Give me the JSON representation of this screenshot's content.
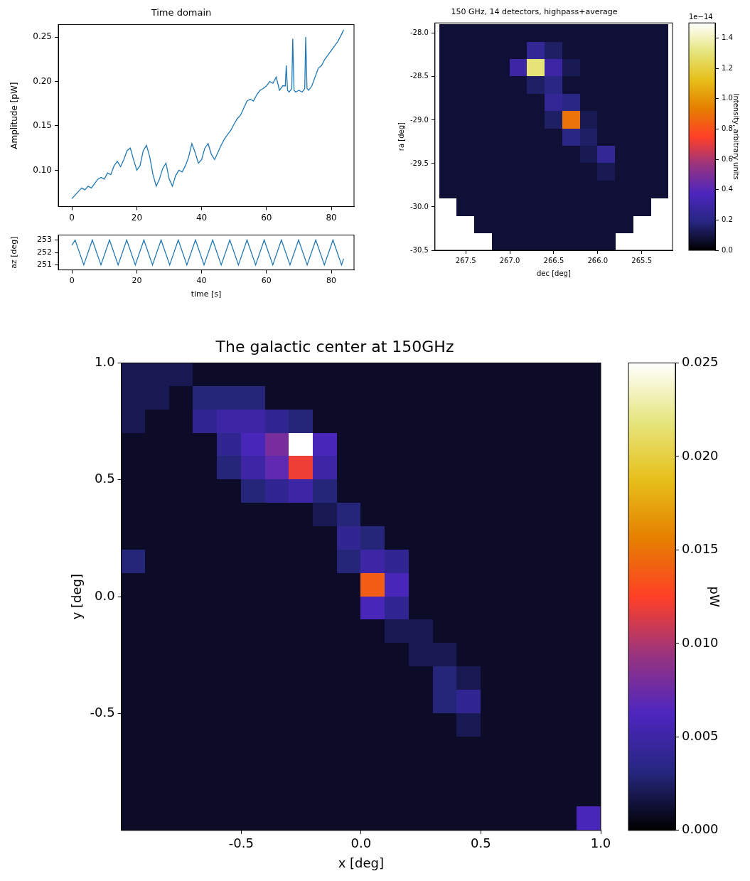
{
  "chart_data": [
    {
      "type": "line",
      "title": "Time domain",
      "ylabel": "Amplitude [pW]",
      "color": "#1f77b4",
      "grid": false,
      "x": [
        0,
        1,
        2,
        3,
        4,
        5,
        6,
        7,
        8,
        9,
        10,
        11,
        12,
        13,
        14,
        15,
        16,
        17,
        18,
        19,
        20,
        21,
        22,
        23,
        24,
        25,
        26,
        27,
        28,
        29,
        30,
        31,
        32,
        33,
        34,
        35,
        36,
        37,
        38,
        39,
        40,
        41,
        42,
        43,
        44,
        45,
        46,
        47,
        48,
        49,
        50,
        51,
        52,
        53,
        54,
        55,
        56,
        57,
        58,
        59,
        60,
        61,
        62,
        63,
        64,
        65,
        65.8,
        66.1,
        66.5,
        67,
        67.8,
        68.1,
        68.5,
        69,
        70,
        71,
        71.8,
        72.1,
        72.5,
        73,
        74,
        75,
        76,
        77,
        78,
        79,
        80,
        81,
        82,
        83,
        83.8
      ],
      "values": [
        0.068,
        0.072,
        0.076,
        0.08,
        0.078,
        0.082,
        0.08,
        0.085,
        0.09,
        0.092,
        0.09,
        0.097,
        0.095,
        0.105,
        0.11,
        0.104,
        0.112,
        0.122,
        0.125,
        0.112,
        0.1,
        0.105,
        0.122,
        0.128,
        0.115,
        0.095,
        0.082,
        0.09,
        0.102,
        0.108,
        0.09,
        0.082,
        0.094,
        0.1,
        0.098,
        0.105,
        0.115,
        0.13,
        0.12,
        0.108,
        0.112,
        0.125,
        0.13,
        0.118,
        0.112,
        0.12,
        0.128,
        0.135,
        0.14,
        0.145,
        0.152,
        0.158,
        0.162,
        0.17,
        0.178,
        0.18,
        0.178,
        0.185,
        0.19,
        0.192,
        0.195,
        0.2,
        0.198,
        0.205,
        0.19,
        0.195,
        0.195,
        0.218,
        0.19,
        0.188,
        0.192,
        0.248,
        0.19,
        0.188,
        0.19,
        0.188,
        0.192,
        0.25,
        0.192,
        0.19,
        0.195,
        0.205,
        0.215,
        0.218,
        0.225,
        0.23,
        0.235,
        0.24,
        0.245,
        0.252,
        0.258
      ],
      "xlim": [
        -4.2,
        87
      ],
      "xticks": [
        0,
        20,
        40,
        60,
        80
      ],
      "ylim": [
        0.059,
        0.264
      ],
      "yticks": [
        {
          "value": 0.1,
          "label": "0.10"
        },
        0.15,
        {
          "value": 0.2,
          "label": "0.20"
        },
        0.25
      ]
    },
    {
      "type": "line",
      "xlabel": "time [s]",
      "ylabel": "az [deg]",
      "color": "#1f77b4",
      "grid": false,
      "x": [
        0,
        1,
        3.65,
        6.3,
        8.95,
        11.6,
        14.25,
        16.9,
        19.55,
        22.2,
        24.85,
        27.5,
        30.15,
        32.8,
        35.45,
        38.1,
        40.75,
        43.4,
        46.05,
        48.7,
        51.35,
        54,
        56.65,
        59.3,
        61.95,
        64.6,
        67.25,
        69.9,
        72.55,
        75.2,
        77.85,
        80.5,
        83.15,
        83.8
      ],
      "values": [
        252.6,
        253,
        251,
        253,
        251,
        253,
        251,
        253,
        251,
        253,
        251,
        253,
        251,
        253,
        251,
        253,
        251,
        253,
        251,
        253,
        251,
        253,
        251,
        253,
        251,
        253,
        251,
        253,
        251,
        253,
        251,
        253,
        251,
        251.5
      ],
      "xlim": [
        -4.2,
        87
      ],
      "xticks": [
        0,
        20,
        40,
        60,
        80
      ],
      "ylim": [
        250.6,
        253.4
      ],
      "yticks": [
        251,
        252,
        253
      ]
    },
    {
      "type": "heatmap",
      "title": "150 GHz, 14 detectors, highpass+average",
      "xlabel": "dec [deg]",
      "ylabel": "ra [deg]",
      "grid": false,
      "x": [
        267.7,
        267.5,
        267.3,
        267.1,
        266.9,
        266.7,
        266.5,
        266.3,
        266.1,
        265.9,
        265.7,
        265.5,
        265.3
      ],
      "y": [
        -28.0,
        -28.2,
        -28.4,
        -28.6,
        -28.8,
        -29.0,
        -29.2,
        -29.4,
        -29.6,
        -29.8,
        -30.0,
        -30.2,
        -30.4
      ],
      "cells": [
        [
          0.08,
          0.08,
          0.08,
          0.08,
          0.08,
          0.08,
          0.08,
          0.08,
          0.08,
          0.08,
          0.08,
          0.08,
          0.08
        ],
        [
          0.08,
          0.08,
          0.08,
          0.08,
          0.08,
          0.25,
          0.15,
          0.08,
          0.08,
          0.08,
          0.08,
          0.08,
          0.08
        ],
        [
          0.08,
          0.08,
          0.08,
          0.08,
          0.3,
          1.3,
          0.3,
          0.12,
          0.08,
          0.08,
          0.08,
          0.08,
          0.08
        ],
        [
          0.08,
          0.08,
          0.08,
          0.08,
          0.08,
          0.15,
          0.2,
          0.08,
          0.08,
          0.08,
          0.08,
          0.08,
          0.08
        ],
        [
          0.08,
          0.08,
          0.08,
          0.08,
          0.08,
          0.08,
          0.25,
          0.2,
          0.08,
          0.08,
          0.08,
          0.08,
          0.08
        ],
        [
          0.08,
          0.08,
          0.08,
          0.08,
          0.08,
          0.08,
          0.15,
          0.9,
          0.12,
          0.08,
          0.08,
          0.08,
          0.08
        ],
        [
          0.08,
          0.08,
          0.08,
          0.08,
          0.08,
          0.08,
          0.08,
          0.2,
          0.15,
          0.08,
          0.08,
          0.08,
          0.08
        ],
        [
          0.08,
          0.08,
          0.08,
          0.08,
          0.08,
          0.08,
          0.08,
          0.08,
          0.12,
          0.25,
          0.08,
          0.08,
          0.08
        ],
        [
          0.08,
          0.08,
          0.08,
          0.08,
          0.08,
          0.08,
          0.08,
          0.08,
          0.08,
          0.12,
          0.08,
          0.08,
          0.08
        ],
        [
          0.08,
          0.08,
          0.08,
          0.08,
          0.08,
          0.08,
          0.08,
          0.08,
          0.08,
          0.08,
          0.08,
          0.08,
          0.08
        ],
        [
          null,
          0.08,
          0.08,
          0.08,
          0.08,
          0.08,
          0.08,
          0.08,
          0.08,
          0.08,
          0.08,
          0.08,
          null
        ],
        [
          null,
          null,
          0.08,
          0.08,
          0.08,
          0.08,
          0.08,
          0.08,
          0.08,
          0.08,
          0.08,
          null,
          null
        ],
        [
          null,
          null,
          null,
          0.08,
          0.08,
          0.08,
          0.08,
          0.08,
          0.08,
          0.08,
          null,
          null,
          null
        ]
      ],
      "xlim": [
        267.85,
        265.15
      ],
      "xticks": [
        267.5,
        {
          "value": 267,
          "label": "267.0"
        },
        266.5,
        {
          "value": 266,
          "label": "266.0"
        },
        265.5
      ],
      "ylim": [
        -30.5,
        -27.88
      ],
      "yticks": [
        {
          "value": -28,
          "label": "-28.0"
        },
        -28.5,
        {
          "value": -29,
          "label": "-29.0"
        },
        -29.5,
        {
          "value": -30,
          "label": "-30.0"
        },
        -30.5
      ],
      "colorbar_lim": [
        0,
        1.5
      ],
      "colorbar_ticks": [
        {
          "value": 0,
          "label": "0.0"
        },
        0.2,
        0.4,
        0.6,
        0.8,
        {
          "value": 1,
          "label": "1.0"
        },
        1.2,
        1.4
      ],
      "colorbar_label": "Intensity, arbitrary units",
      "colorbar_offset_text": "1e−14"
    },
    {
      "type": "heatmap",
      "title": "The galactic center at 150GHz",
      "xlabel": "x [deg]",
      "ylabel": "y [deg]",
      "grid": false,
      "x": [
        -0.95,
        -0.85,
        -0.75,
        -0.65,
        -0.55,
        -0.45,
        -0.35,
        -0.25,
        -0.15,
        -0.05,
        0.05,
        0.15,
        0.25,
        0.35,
        0.45,
        0.55,
        0.65,
        0.75,
        0.85,
        0.95
      ],
      "y": [
        0.95,
        0.85,
        0.75,
        0.65,
        0.55,
        0.45,
        0.35,
        0.25,
        0.15,
        0.05,
        -0.05,
        -0.15,
        -0.25,
        -0.35,
        -0.45,
        -0.55,
        -0.65,
        -0.75,
        -0.85,
        -0.95
      ],
      "cells": [
        [
          0.002,
          0.002,
          0.002,
          0.001,
          0.001,
          0.001,
          0.001,
          0.001,
          0.001,
          0.001,
          0.001,
          0.001,
          0.001,
          0.001,
          0.001,
          0.001,
          0.001,
          0.001,
          0.001,
          0.001
        ],
        [
          0.002,
          0.002,
          0.001,
          0.003,
          0.003,
          0.003,
          0.001,
          0.001,
          0.001,
          0.001,
          0.001,
          0.001,
          0.001,
          0.001,
          0.001,
          0.001,
          0.001,
          0.001,
          0.001,
          0.001
        ],
        [
          0.002,
          0.001,
          0.001,
          0.004,
          0.005,
          0.005,
          0.004,
          0.003,
          0.001,
          0.001,
          0.001,
          0.001,
          0.001,
          0.001,
          0.001,
          0.001,
          0.001,
          0.001,
          0.001,
          0.001
        ],
        [
          0.001,
          0.001,
          0.001,
          0.001,
          0.004,
          0.006,
          0.008,
          0.035,
          0.006,
          0.001,
          0.001,
          0.001,
          0.001,
          0.001,
          0.001,
          0.001,
          0.001,
          0.001,
          0.001,
          0.001
        ],
        [
          0.001,
          0.001,
          0.001,
          0.001,
          0.003,
          0.005,
          0.007,
          0.012,
          0.005,
          0.001,
          0.001,
          0.001,
          0.001,
          0.001,
          0.001,
          0.001,
          0.001,
          0.001,
          0.001,
          0.001
        ],
        [
          0.001,
          0.001,
          0.001,
          0.001,
          0.001,
          0.003,
          0.004,
          0.005,
          0.003,
          0.001,
          0.001,
          0.001,
          0.001,
          0.001,
          0.001,
          0.001,
          0.001,
          0.001,
          0.001,
          0.001
        ],
        [
          0.001,
          0.001,
          0.001,
          0.001,
          0.001,
          0.001,
          0.001,
          0.001,
          0.002,
          0.003,
          0.001,
          0.001,
          0.001,
          0.001,
          0.001,
          0.001,
          0.001,
          0.001,
          0.001,
          0.001
        ],
        [
          0.001,
          0.001,
          0.001,
          0.001,
          0.001,
          0.001,
          0.001,
          0.001,
          0.001,
          0.004,
          0.003,
          0.001,
          0.001,
          0.001,
          0.001,
          0.001,
          0.001,
          0.001,
          0.001,
          0.001
        ],
        [
          0.003,
          0.001,
          0.001,
          0.001,
          0.001,
          0.001,
          0.001,
          0.001,
          0.001,
          0.003,
          0.005,
          0.004,
          0.001,
          0.001,
          0.001,
          0.001,
          0.001,
          0.001,
          0.001,
          0.001
        ],
        [
          0.001,
          0.001,
          0.001,
          0.001,
          0.001,
          0.001,
          0.001,
          0.001,
          0.001,
          0.001,
          0.014,
          0.006,
          0.001,
          0.001,
          0.001,
          0.001,
          0.001,
          0.001,
          0.001,
          0.001
        ],
        [
          0.001,
          0.001,
          0.001,
          0.001,
          0.001,
          0.001,
          0.001,
          0.001,
          0.001,
          0.001,
          0.006,
          0.004,
          0.001,
          0.001,
          0.001,
          0.001,
          0.001,
          0.001,
          0.001,
          0.001
        ],
        [
          0.001,
          0.001,
          0.001,
          0.001,
          0.001,
          0.001,
          0.001,
          0.001,
          0.001,
          0.001,
          0.001,
          0.002,
          0.002,
          0.001,
          0.001,
          0.001,
          0.001,
          0.001,
          0.001,
          0.001
        ],
        [
          0.001,
          0.001,
          0.001,
          0.001,
          0.001,
          0.001,
          0.001,
          0.001,
          0.001,
          0.001,
          0.001,
          0.001,
          0.002,
          0.002,
          0.001,
          0.001,
          0.001,
          0.001,
          0.001,
          0.001
        ],
        [
          0.001,
          0.001,
          0.001,
          0.001,
          0.001,
          0.001,
          0.001,
          0.001,
          0.001,
          0.001,
          0.001,
          0.001,
          0.001,
          0.003,
          0.002,
          0.001,
          0.001,
          0.001,
          0.001,
          0.001
        ],
        [
          0.001,
          0.001,
          0.001,
          0.001,
          0.001,
          0.001,
          0.001,
          0.001,
          0.001,
          0.001,
          0.001,
          0.001,
          0.001,
          0.003,
          0.004,
          0.001,
          0.001,
          0.001,
          0.001,
          0.001
        ],
        [
          0.001,
          0.001,
          0.001,
          0.001,
          0.001,
          0.001,
          0.001,
          0.001,
          0.001,
          0.001,
          0.001,
          0.001,
          0.001,
          0.001,
          0.002,
          0.001,
          0.001,
          0.001,
          0.001,
          0.001
        ],
        [
          0.001,
          0.001,
          0.001,
          0.001,
          0.001,
          0.001,
          0.001,
          0.001,
          0.001,
          0.001,
          0.001,
          0.001,
          0.001,
          0.001,
          0.001,
          0.001,
          0.001,
          0.001,
          0.001,
          0.001
        ],
        [
          0.001,
          0.001,
          0.001,
          0.001,
          0.001,
          0.001,
          0.001,
          0.001,
          0.001,
          0.001,
          0.001,
          0.001,
          0.001,
          0.001,
          0.001,
          0.001,
          0.001,
          0.001,
          0.001,
          0.001
        ],
        [
          0.001,
          0.001,
          0.001,
          0.001,
          0.001,
          0.001,
          0.001,
          0.001,
          0.001,
          0.001,
          0.001,
          0.001,
          0.001,
          0.001,
          0.001,
          0.001,
          0.001,
          0.001,
          0.001,
          0.001
        ],
        [
          0.001,
          0.001,
          0.001,
          0.001,
          0.001,
          0.001,
          0.001,
          0.001,
          0.001,
          0.001,
          0.001,
          0.001,
          0.001,
          0.001,
          0.001,
          0.001,
          0.001,
          0.001,
          0.001,
          0.006
        ]
      ],
      "xlim": [
        -1,
        1
      ],
      "xticks": [
        -0.5,
        {
          "value": 0,
          "label": "0.0"
        },
        0.5,
        {
          "value": 1,
          "label": "1.0"
        }
      ],
      "ylim": [
        -1,
        1
      ],
      "yticks": [
        -0.5,
        {
          "value": 0,
          "label": "0.0"
        },
        0.5,
        {
          "value": 1,
          "label": "1.0"
        }
      ],
      "colorbar_lim": [
        0,
        0.025
      ],
      "colorbar_ticks": [
        {
          "value": 0,
          "label": "0.000"
        },
        0.005,
        {
          "value": 0.01,
          "label": "0.010"
        },
        0.015,
        {
          "value": 0.02,
          "label": "0.020"
        },
        0.025
      ],
      "colorbar_label": "pW"
    }
  ]
}
